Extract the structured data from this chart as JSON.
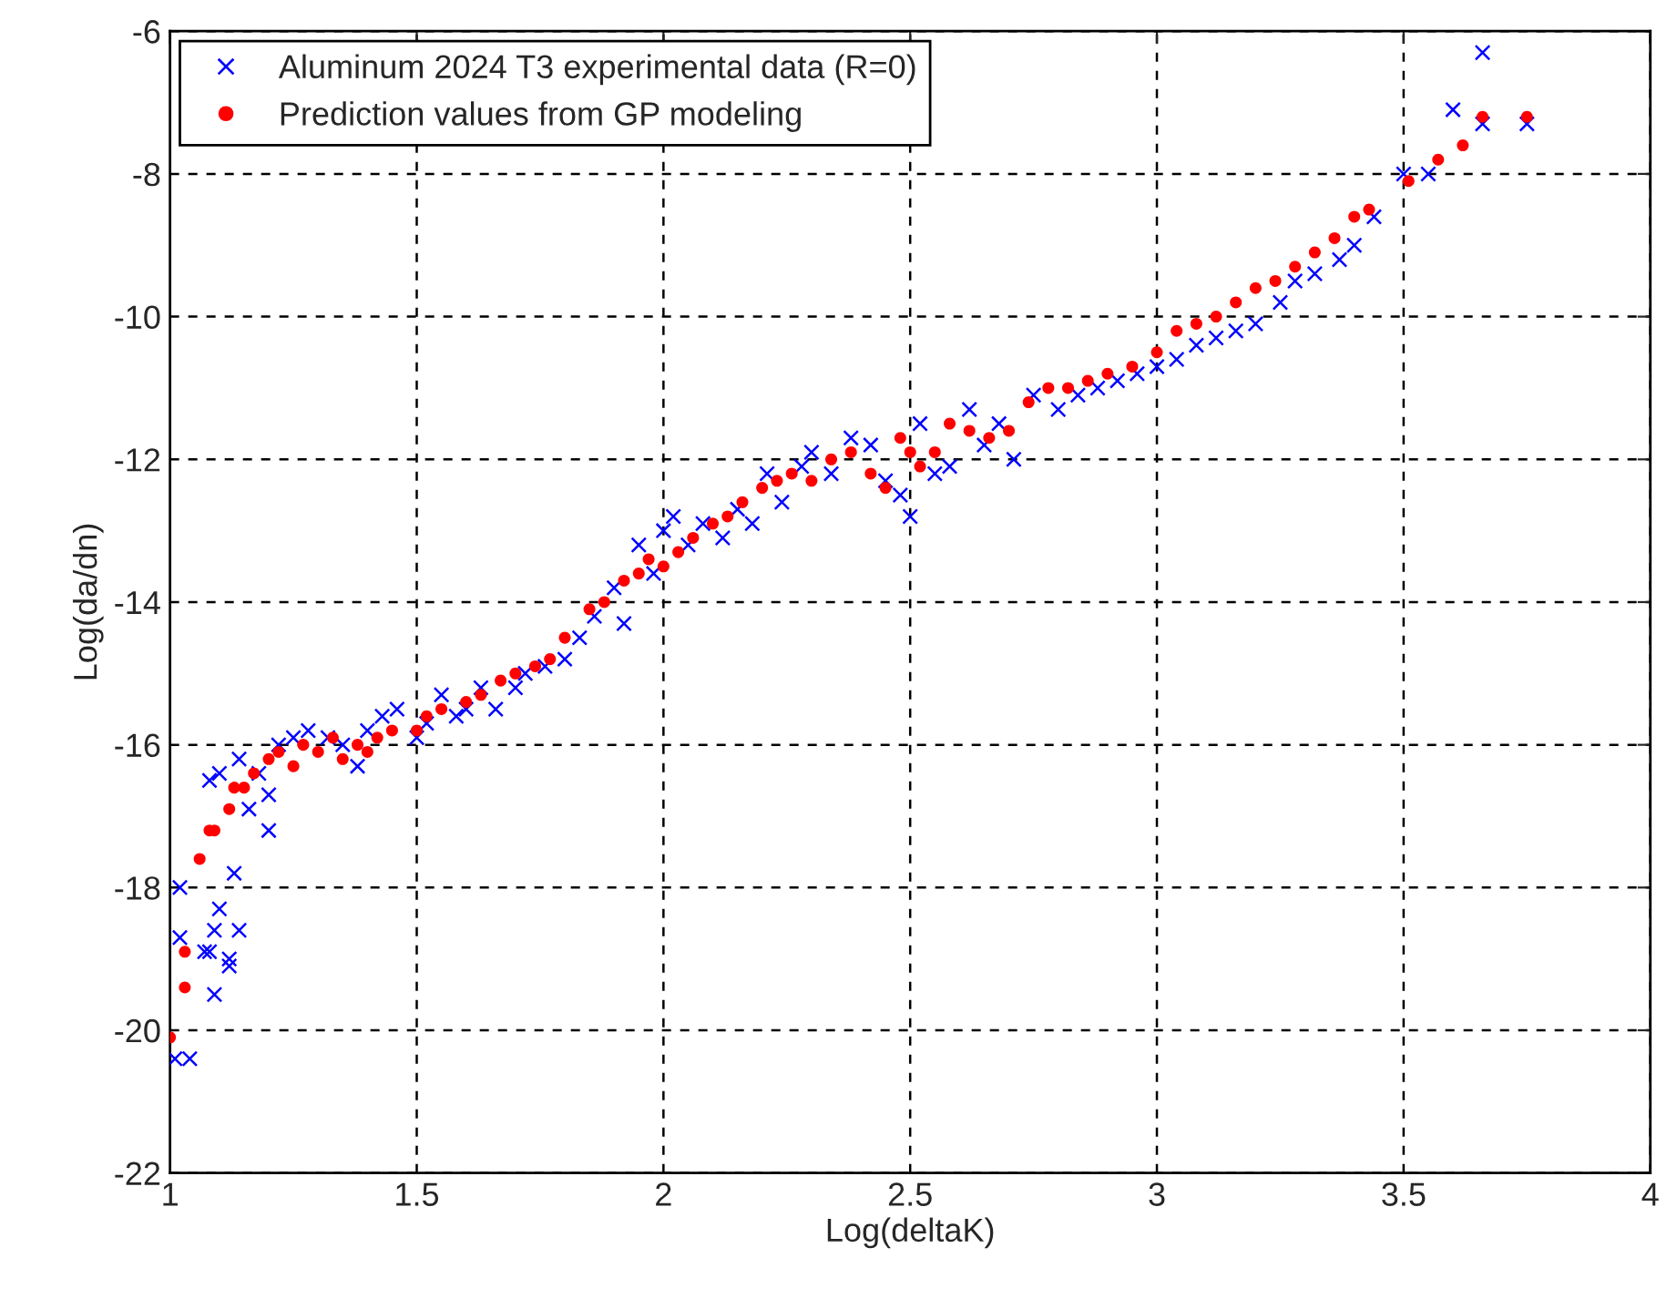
{
  "chart_data": {
    "type": "scatter",
    "xlabel": "Log(deltaK)",
    "ylabel": "Log(da/dn)",
    "xlim": [
      1,
      4
    ],
    "ylim": [
      -22,
      -6
    ],
    "xticks": [
      1,
      1.5,
      2,
      2.5,
      3,
      3.5,
      4
    ],
    "yticks": [
      -22,
      -20,
      -18,
      -16,
      -14,
      -12,
      -10,
      -8,
      -6
    ],
    "grid": true,
    "legend": "top left",
    "series": [
      {
        "name": "Aluminum 2024 T3 experimental data (R=0)",
        "color": "#0000ff",
        "marker": "cross",
        "x": [
          1.02,
          1.02,
          1.01,
          1.04,
          1.07,
          1.08,
          1.09,
          1.09,
          1.1,
          1.12,
          1.12,
          1.14,
          1.13,
          1.08,
          1.1,
          1.14,
          1.16,
          1.18,
          1.2,
          1.2,
          1.22,
          1.25,
          1.28,
          1.32,
          1.35,
          1.38,
          1.4,
          1.43,
          1.46,
          1.5,
          1.52,
          1.55,
          1.58,
          1.6,
          1.63,
          1.66,
          1.7,
          1.72,
          1.76,
          1.8,
          1.83,
          1.86,
          1.9,
          1.92,
          1.95,
          1.98,
          2.0,
          2.02,
          2.05,
          2.08,
          2.12,
          2.15,
          2.18,
          2.21,
          2.24,
          2.28,
          2.3,
          2.34,
          2.38,
          2.42,
          2.45,
          2.48,
          2.5,
          2.52,
          2.55,
          2.58,
          2.62,
          2.65,
          2.68,
          2.71,
          2.75,
          2.8,
          2.84,
          2.88,
          2.92,
          2.96,
          3.0,
          3.04,
          3.08,
          3.12,
          3.16,
          3.2,
          3.25,
          3.28,
          3.32,
          3.37,
          3.4,
          3.44,
          3.5,
          3.55,
          3.6,
          3.66,
          3.66,
          3.75
        ],
        "values": [
          -18.0,
          -18.7,
          -20.4,
          -20.4,
          -18.9,
          -18.9,
          -18.6,
          -19.5,
          -18.3,
          -19.0,
          -19.1,
          -18.6,
          -17.8,
          -16.5,
          -16.4,
          -16.2,
          -16.9,
          -16.4,
          -16.7,
          -17.2,
          -16.0,
          -15.9,
          -15.8,
          -15.9,
          -16.0,
          -16.3,
          -15.8,
          -15.6,
          -15.5,
          -15.9,
          -15.7,
          -15.3,
          -15.6,
          -15.5,
          -15.2,
          -15.5,
          -15.2,
          -15.0,
          -14.9,
          -14.8,
          -14.5,
          -14.2,
          -13.8,
          -14.3,
          -13.2,
          -13.6,
          -13.0,
          -12.8,
          -13.2,
          -12.9,
          -13.1,
          -12.7,
          -12.9,
          -12.2,
          -12.6,
          -12.1,
          -11.9,
          -12.2,
          -11.7,
          -11.8,
          -12.3,
          -12.5,
          -12.8,
          -11.5,
          -12.2,
          -12.1,
          -11.3,
          -11.8,
          -11.5,
          -12.0,
          -11.1,
          -11.3,
          -11.1,
          -11.0,
          -10.9,
          -10.8,
          -10.7,
          -10.6,
          -10.4,
          -10.3,
          -10.2,
          -10.1,
          -9.8,
          -9.5,
          -9.4,
          -9.2,
          -9.0,
          -8.6,
          -8.0,
          -8.0,
          -7.1,
          -6.3,
          -7.3,
          -7.3
        ]
      },
      {
        "name": "Prediction values from GP modeling",
        "color": "#ff0000",
        "marker": "circle",
        "x": [
          1.0,
          1.03,
          1.03,
          1.06,
          1.08,
          1.09,
          1.12,
          1.13,
          1.15,
          1.17,
          1.2,
          1.22,
          1.25,
          1.27,
          1.3,
          1.33,
          1.35,
          1.38,
          1.4,
          1.42,
          1.45,
          1.5,
          1.52,
          1.55,
          1.6,
          1.63,
          1.67,
          1.7,
          1.74,
          1.77,
          1.8,
          1.85,
          1.88,
          1.92,
          1.95,
          1.97,
          2.0,
          2.03,
          2.06,
          2.1,
          2.13,
          2.16,
          2.2,
          2.23,
          2.26,
          2.3,
          2.34,
          2.38,
          2.42,
          2.45,
          2.48,
          2.5,
          2.52,
          2.55,
          2.58,
          2.62,
          2.66,
          2.7,
          2.74,
          2.78,
          2.82,
          2.86,
          2.9,
          2.95,
          3.0,
          3.04,
          3.08,
          3.12,
          3.16,
          3.2,
          3.24,
          3.28,
          3.32,
          3.36,
          3.4,
          3.43,
          3.51,
          3.57,
          3.62,
          3.66,
          3.75
        ],
        "values": [
          -20.1,
          -19.4,
          -18.9,
          -17.6,
          -17.2,
          -17.2,
          -16.9,
          -16.6,
          -16.6,
          -16.4,
          -16.2,
          -16.1,
          -16.3,
          -16.0,
          -16.1,
          -15.9,
          -16.2,
          -16.0,
          -16.1,
          -15.9,
          -15.8,
          -15.8,
          -15.6,
          -15.5,
          -15.4,
          -15.3,
          -15.1,
          -15.0,
          -14.9,
          -14.8,
          -14.5,
          -14.1,
          -14.0,
          -13.7,
          -13.6,
          -13.4,
          -13.5,
          -13.3,
          -13.1,
          -12.9,
          -12.8,
          -12.6,
          -12.4,
          -12.3,
          -12.2,
          -12.3,
          -12.0,
          -11.9,
          -12.2,
          -12.4,
          -11.7,
          -11.9,
          -12.1,
          -11.9,
          -11.5,
          -11.6,
          -11.7,
          -11.6,
          -11.2,
          -11.0,
          -11.0,
          -10.9,
          -10.8,
          -10.7,
          -10.5,
          -10.2,
          -10.1,
          -10.0,
          -9.8,
          -9.6,
          -9.5,
          -9.3,
          -9.1,
          -8.9,
          -8.6,
          -8.5,
          -8.1,
          -7.8,
          -7.6,
          -7.2,
          -7.2
        ]
      }
    ]
  }
}
